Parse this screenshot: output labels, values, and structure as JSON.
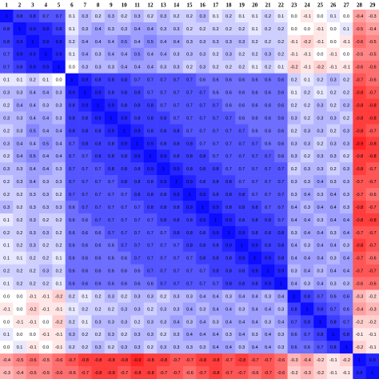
{
  "table": {
    "header": [
      "1",
      "2",
      "3",
      "4",
      "5",
      "6",
      "7",
      "8",
      "9",
      "10",
      "11",
      "12",
      "13",
      "14",
      "15",
      "16",
      "17",
      "18",
      "19",
      "20",
      "21",
      "22",
      "23",
      "24",
      "25",
      "26",
      "27",
      "28",
      "29"
    ],
    "rows": [
      [
        "1",
        "0.8",
        "0.8",
        "0.7",
        "0.7",
        "0.1",
        "0.3",
        "0.2",
        "0.3",
        "0.2",
        "0.3",
        "0.2",
        "0.3",
        "0.2",
        "0.2",
        "0.3",
        "0.1",
        "0.2",
        "0.1",
        "0.1",
        "0.2",
        "0.1",
        "0.0",
        "-0.1",
        "0.0",
        "0.1",
        "0.0",
        "-0.4",
        "-0.3"
      ],
      [
        "0.8",
        "1",
        "0.9",
        "0.9",
        "0.8",
        "0.1",
        "0.3",
        "0.4",
        "0.3",
        "0.3",
        "0.4",
        "0.4",
        "0.3",
        "0.3",
        "0.2",
        "0.2",
        "0.2",
        "0.2",
        "0.2",
        "0.1",
        "0.2",
        "0.2",
        "0.0",
        "0.0",
        "-0.1",
        "0.0",
        "0.1",
        "-0.5",
        "-0.4"
      ],
      [
        "0.8",
        "0.9",
        "1",
        "0.9",
        "0.9",
        "0.2",
        "0.4",
        "0.4",
        "0.4",
        "0.5",
        "0.4",
        "0.5",
        "0.4",
        "0.4",
        "0.3",
        "0.3",
        "0.3",
        "0.3",
        "0.3",
        "0.2",
        "0.2",
        "0.2",
        "-0.1",
        "-0.2",
        "-0.1",
        "0.0",
        "-0.1",
        "-0.6",
        "-0.5"
      ],
      [
        "0.7",
        "0.9",
        "0.9",
        "1",
        "0.9",
        "0.1",
        "0.4",
        "0.3",
        "0.4",
        "0.4",
        "0.5",
        "0.4",
        "0.4",
        "0.3",
        "0.3",
        "0.3",
        "0.2",
        "0.3",
        "0.2",
        "0.2",
        "0.3",
        "0.2",
        "-0.1",
        "-0.1",
        "0.0",
        "-0.1",
        "0.0",
        "-0.5",
        "-0.5"
      ],
      [
        "0.7",
        "0.8",
        "0.9",
        "0.9",
        "1",
        "0.0",
        "0.3",
        "0.3",
        "0.3",
        "0.4",
        "0.4",
        "0.4",
        "0.3",
        "0.3",
        "0.2",
        "0.3",
        "0.2",
        "0.2",
        "0.2",
        "0.1",
        "0.2",
        "0.1",
        "-0.2",
        "-0.1",
        "-0.2",
        "-0.1",
        "-0.1",
        "-0.6",
        "-0.6"
      ],
      [
        "0.1",
        "0.1",
        "0.2",
        "0.1",
        "0.0",
        "1",
        "0.9",
        "0.8",
        "0.8",
        "0.8",
        "0.7",
        "0.7",
        "0.7",
        "0.7",
        "0.7",
        "0.6",
        "0.6",
        "0.6",
        "0.6",
        "0.6",
        "0.6",
        "0.6",
        "0.2",
        "0.1",
        "0.2",
        "0.3",
        "0.2",
        "-0.7",
        "-0.6"
      ],
      [
        "0.3",
        "0.3",
        "0.4",
        "0.4",
        "0.3",
        "0.9",
        "1",
        "0.9",
        "0.8",
        "0.8",
        "0.8",
        "0.7",
        "0.7",
        "0.7",
        "0.7",
        "0.7",
        "0.6",
        "0.6",
        "0.6",
        "0.6",
        "0.6",
        "0.6",
        "0.1",
        "0.2",
        "0.1",
        "0.2",
        "0.2",
        "-0.8",
        "-0.7"
      ],
      [
        "0.2",
        "0.4",
        "0.4",
        "0.3",
        "0.3",
        "0.8",
        "0.9",
        "1",
        "0.9",
        "0.8",
        "0.8",
        "0.8",
        "0.7",
        "0.7",
        "0.7",
        "0.7",
        "0.7",
        "0.6",
        "0.6",
        "0.6",
        "0.6",
        "0.6",
        "0.2",
        "0.2",
        "0.3",
        "0.2",
        "0.3",
        "-0.8",
        "-0.8"
      ],
      [
        "0.3",
        "0.3",
        "0.4",
        "0.4",
        "0.3",
        "0.8",
        "0.8",
        "0.9",
        "1",
        "0.9",
        "0.8",
        "0.8",
        "0.8",
        "0.7",
        "0.7",
        "0.7",
        "0.7",
        "0.7",
        "0.6",
        "0.6",
        "0.6",
        "0.6",
        "0.3",
        "0.2",
        "0.3",
        "0.3",
        "0.2",
        "-0.8",
        "-0.8"
      ],
      [
        "0.2",
        "0.3",
        "0.5",
        "0.4",
        "0.4",
        "0.8",
        "0.8",
        "0.8",
        "0.9",
        "1",
        "0.9",
        "0.8",
        "0.8",
        "0.8",
        "0.7",
        "0.7",
        "0.7",
        "0.7",
        "0.7",
        "0.6",
        "0.6",
        "0.6",
        "0.2",
        "0.3",
        "0.3",
        "0.2",
        "0.3",
        "-0.8",
        "-0.7"
      ],
      [
        "0.3",
        "0.4",
        "0.4",
        "0.5",
        "0.4",
        "0.7",
        "0.8",
        "0.8",
        "0.8",
        "0.9",
        "1",
        "0.9",
        "0.8",
        "0.8",
        "0.8",
        "0.7",
        "0.7",
        "0.7",
        "0.7",
        "0.7",
        "0.6",
        "0.6",
        "0.3",
        "0.3",
        "0.2",
        "0.3",
        "0.3",
        "-0.9",
        "-0.8"
      ],
      [
        "0.2",
        "0.4",
        "0.5",
        "0.4",
        "0.4",
        "0.7",
        "0.7",
        "0.8",
        "0.8",
        "0.8",
        "0.9",
        "1",
        "0.9",
        "0.8",
        "0.8",
        "0.8",
        "0.7",
        "0.7",
        "0.7",
        "0.7",
        "0.7",
        "0.6",
        "0.3",
        "0.2",
        "0.3",
        "0.3",
        "0.2",
        "-0.8",
        "-0.8"
      ],
      [
        "0.3",
        "0.3",
        "0.4",
        "0.4",
        "0.3",
        "0.7",
        "0.7",
        "0.7",
        "0.8",
        "0.8",
        "0.8",
        "0.9",
        "1",
        "0.9",
        "0.8",
        "0.8",
        "0.8",
        "0.7",
        "0.7",
        "0.7",
        "0.7",
        "0.7",
        "0.2",
        "0.3",
        "0.3",
        "0.2",
        "0.3",
        "-0.8",
        "-0.7"
      ],
      [
        "0.2",
        "0.3",
        "0.4",
        "0.3",
        "0.3",
        "0.7",
        "0.7",
        "0.7",
        "0.7",
        "0.8",
        "0.8",
        "0.8",
        "0.9",
        "1",
        "0.9",
        "0.8",
        "0.8",
        "0.8",
        "0.7",
        "0.7",
        "0.7",
        "0.7",
        "0.3",
        "0.3",
        "0.4",
        "0.3",
        "0.3",
        "-0.7",
        "-0.7"
      ],
      [
        "0.2",
        "0.2",
        "0.3",
        "0.3",
        "0.2",
        "0.7",
        "0.7",
        "0.7",
        "0.7",
        "0.7",
        "0.8",
        "0.8",
        "0.8",
        "0.9",
        "1",
        "0.9",
        "0.8",
        "0.8",
        "0.8",
        "0.7",
        "0.7",
        "0.7",
        "0.3",
        "0.4",
        "0.3",
        "0.4",
        "0.3",
        "-0.7",
        "-0.6"
      ],
      [
        "0.3",
        "0.2",
        "0.3",
        "0.3",
        "0.3",
        "0.6",
        "0.7",
        "0.7",
        "0.7",
        "0.7",
        "0.7",
        "0.8",
        "0.8",
        "0.8",
        "0.9",
        "1",
        "0.9",
        "0.8",
        "0.8",
        "0.8",
        "0.7",
        "0.7",
        "0.4",
        "0.3",
        "0.4",
        "0.4",
        "0.3",
        "-0.8",
        "-0.7"
      ],
      [
        "0.1",
        "0.2",
        "0.3",
        "0.2",
        "0.2",
        "0.6",
        "0.6",
        "0.7",
        "0.7",
        "0.7",
        "0.7",
        "0.7",
        "0.8",
        "0.8",
        "0.8",
        "0.9",
        "1",
        "0.9",
        "0.8",
        "0.8",
        "0.8",
        "0.7",
        "0.4",
        "0.4",
        "0.3",
        "0.4",
        "0.4",
        "-0.8",
        "-0.8"
      ],
      [
        "0.2",
        "0.2",
        "0.3",
        "0.3",
        "0.2",
        "0.6",
        "0.6",
        "0.6",
        "0.7",
        "0.7",
        "0.7",
        "0.7",
        "0.7",
        "0.8",
        "0.8",
        "0.8",
        "0.9",
        "1",
        "0.9",
        "0.8",
        "0.8",
        "0.8",
        "0.3",
        "0.4",
        "0.4",
        "0.3",
        "0.4",
        "-0.7",
        "-0.7"
      ],
      [
        "0.1",
        "0.2",
        "0.3",
        "0.2",
        "0.2",
        "0.6",
        "0.6",
        "0.6",
        "0.6",
        "0.7",
        "0.7",
        "0.7",
        "0.7",
        "0.7",
        "0.8",
        "0.8",
        "0.8",
        "0.9",
        "1",
        "0.9",
        "0.8",
        "0.8",
        "0.4",
        "0.3",
        "0.4",
        "0.4",
        "0.3",
        "-0.8",
        "-0.7"
      ],
      [
        "0.1",
        "0.1",
        "0.2",
        "0.2",
        "0.1",
        "0.6",
        "0.6",
        "0.6",
        "0.6",
        "0.6",
        "0.7",
        "0.7",
        "0.7",
        "0.7",
        "0.7",
        "0.8",
        "0.8",
        "0.8",
        "0.9",
        "1",
        "0.9",
        "0.8",
        "0.4",
        "0.4",
        "0.4",
        "0.3",
        "0.4",
        "-0.7",
        "-0.6"
      ],
      [
        "0.2",
        "0.2",
        "0.2",
        "0.3",
        "0.2",
        "0.6",
        "0.6",
        "0.6",
        "0.6",
        "0.6",
        "0.6",
        "0.7",
        "0.7",
        "0.7",
        "0.7",
        "0.7",
        "0.8",
        "0.8",
        "0.8",
        "0.9",
        "1",
        "0.9",
        "0.3",
        "0.4",
        "0.3",
        "0.4",
        "0.4",
        "-0.7",
        "-0.7"
      ],
      [
        "0.1",
        "0.2",
        "0.2",
        "0.2",
        "0.1",
        "0.6",
        "0.6",
        "0.6",
        "0.6",
        "0.6",
        "0.6",
        "0.6",
        "0.7",
        "0.7",
        "0.7",
        "0.7",
        "0.7",
        "0.8",
        "0.8",
        "0.8",
        "0.9",
        "1",
        "0.4",
        "0.3",
        "0.4",
        "0.3",
        "0.3",
        "-0.6",
        "-0.6"
      ],
      [
        "0.0",
        "0.0",
        "-0.1",
        "-0.1",
        "-0.2",
        "0.2",
        "0.1",
        "0.2",
        "0.3",
        "0.2",
        "0.3",
        "0.3",
        "0.2",
        "0.3",
        "0.3",
        "0.4",
        "0.4",
        "0.3",
        "0.4",
        "0.4",
        "0.3",
        "0.4",
        "1",
        "0.8",
        "0.7",
        "0.6",
        "0.6",
        "-0.3",
        "-0.2"
      ],
      [
        "-0.1",
        "0.0",
        "-0.2",
        "-0.1",
        "-0.1",
        "0.1",
        "0.2",
        "0.2",
        "0.2",
        "0.3",
        "0.3",
        "0.2",
        "0.3",
        "0.3",
        "0.4",
        "0.3",
        "0.4",
        "0.4",
        "0.3",
        "0.4",
        "0.4",
        "0.3",
        "0.8",
        "1",
        "0.8",
        "0.7",
        "0.6",
        "-0.4",
        "-0.3"
      ],
      [
        "0.0",
        "-0.1",
        "-0.1",
        "0.0",
        "-0.2",
        "0.2",
        "0.1",
        "0.3",
        "0.3",
        "0.3",
        "0.2",
        "0.3",
        "0.3",
        "0.4",
        "0.3",
        "0.4",
        "0.3",
        "0.4",
        "0.4",
        "0.4",
        "0.3",
        "0.4",
        "0.7",
        "0.8",
        "1",
        "0.8",
        "0.7",
        "-0.2",
        "-0.2"
      ],
      [
        "0.1",
        "0.0",
        "0.0",
        "-0.1",
        "-0.1",
        "0.3",
        "0.2",
        "0.2",
        "0.3",
        "0.2",
        "0.3",
        "0.3",
        "0.2",
        "0.3",
        "0.4",
        "0.4",
        "0.4",
        "0.3",
        "0.4",
        "0.3",
        "0.4",
        "0.3",
        "0.6",
        "0.7",
        "0.8",
        "1",
        "0.8",
        "-0.1",
        "-0.1"
      ],
      [
        "0.0",
        "0.1",
        "-0.1",
        "0.0",
        "-0.1",
        "0.2",
        "0.2",
        "0.3",
        "0.2",
        "0.3",
        "0.3",
        "0.2",
        "0.3",
        "0.3",
        "0.3",
        "0.3",
        "0.4",
        "0.4",
        "0.3",
        "0.4",
        "0.4",
        "0.3",
        "0.6",
        "0.6",
        "0.7",
        "0.8",
        "1",
        "-0.2",
        "-0.1"
      ],
      [
        "-0.4",
        "-0.5",
        "-0.6",
        "-0.5",
        "-0.6",
        "-0.7",
        "-0.8",
        "-0.8",
        "-0.8",
        "-0.8",
        "-0.9",
        "-0.8",
        "-0.8",
        "-0.7",
        "-0.7",
        "-0.8",
        "-0.8",
        "-0.7",
        "-0.8",
        "-0.7",
        "-0.7",
        "-0.6",
        "-0.3",
        "-0.4",
        "-0.2",
        "-0.1",
        "-0.2",
        "1",
        "0.9"
      ],
      [
        "-0.3",
        "-0.4",
        "-0.5",
        "-0.5",
        "-0.6",
        "-0.6",
        "-0.7",
        "-0.8",
        "-0.8",
        "-0.7",
        "-0.8",
        "-0.8",
        "-0.7",
        "-0.7",
        "-0.6",
        "-0.7",
        "-0.8",
        "-0.7",
        "-0.7",
        "-0.6",
        "-0.7",
        "-0.6",
        "-0.2",
        "-0.3",
        "-0.2",
        "-0.1",
        "-0.1",
        "0.9",
        "1"
      ]
    ]
  }
}
